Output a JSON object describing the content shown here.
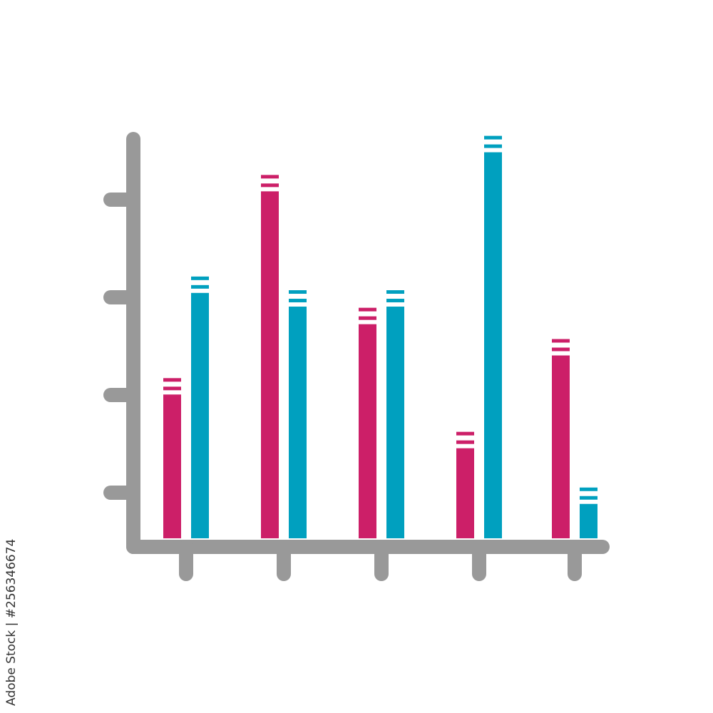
{
  "chart_data": {
    "type": "bar",
    "title": "",
    "xlabel": "",
    "ylabel": "",
    "categories": [
      "",
      "",
      "",
      "",
      ""
    ],
    "series": [
      {
        "color": "#cc1f68",
        "values": [
          1.64,
          3.72,
          2.36,
          1.09,
          2.04
        ]
      },
      {
        "color": "#00a0bf",
        "values": [
          2.68,
          2.54,
          2.54,
          4.12,
          0.52
        ]
      }
    ],
    "ylim": [
      0,
      4.2
    ],
    "y_tick_count": 4,
    "x_tick_count": 5,
    "grid": false,
    "axis_color": "#999999"
  },
  "watermark": {
    "credit": "Adobe Stock | #256346674"
  }
}
